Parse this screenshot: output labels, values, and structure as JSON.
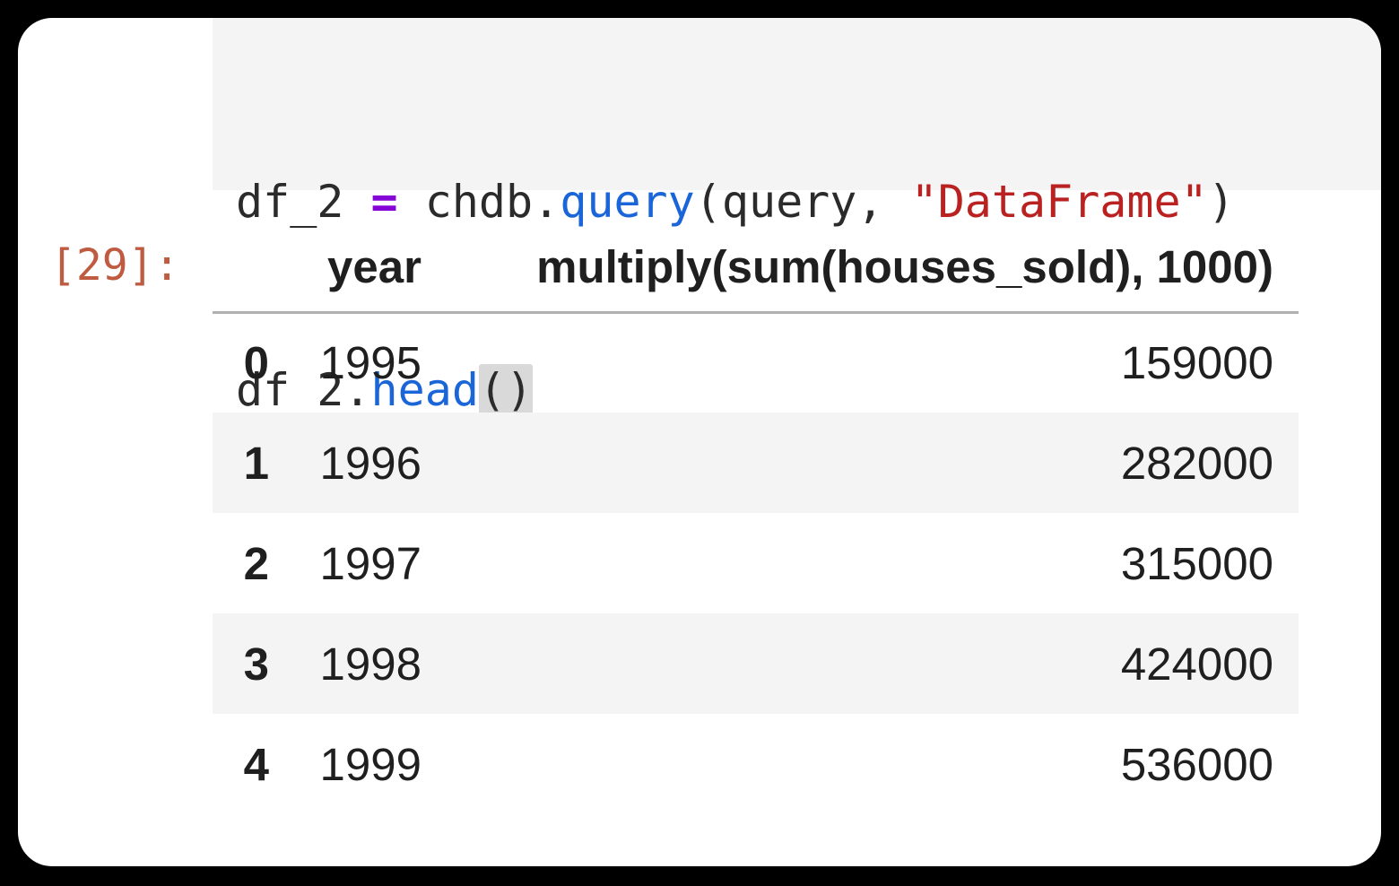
{
  "colors": {
    "page_background": "#000000",
    "card_background": "#ffffff",
    "code_cell_background": "#f4f4f4",
    "code_text": "#2b2b2b",
    "operator_color": "#8405d6",
    "function_color": "#1a66d8",
    "string_color": "#ba2121",
    "bracket_highlight": "#d9d9d9",
    "output_prompt_color": "#bf5b40",
    "row_stripe": "#f4f4f4",
    "header_rule": "#b1b1b1"
  },
  "code": {
    "line1": {
      "t1": "df_2 ",
      "t2": "=",
      "t3": " chdb.",
      "t4": "query",
      "t5": "(query, ",
      "t6": "\"DataFrame\"",
      "t7": ")"
    },
    "line2": {
      "t1": "df_2.",
      "t2": "head",
      "t3": "()"
    }
  },
  "output": {
    "prompt": "[29]:",
    "table": {
      "index_header": "",
      "columns": [
        "year",
        "multiply(sum(houses_sold), 1000)"
      ],
      "rows": [
        {
          "index": "0",
          "year": "1995",
          "value": "159000"
        },
        {
          "index": "1",
          "year": "1996",
          "value": "282000"
        },
        {
          "index": "2",
          "year": "1997",
          "value": "315000"
        },
        {
          "index": "3",
          "year": "1998",
          "value": "424000"
        },
        {
          "index": "4",
          "year": "1999",
          "value": "536000"
        }
      ]
    }
  }
}
